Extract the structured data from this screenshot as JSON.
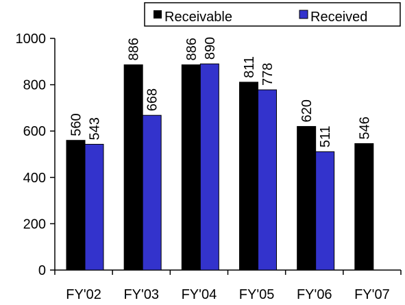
{
  "chart_data": {
    "type": "bar",
    "categories": [
      "FY'02",
      "FY'03",
      "FY'04",
      "FY'05",
      "FY'06",
      "FY'07"
    ],
    "series": [
      {
        "name": "Receivable",
        "values": [
          560,
          886,
          886,
          811,
          620,
          546
        ],
        "color": "#000000"
      },
      {
        "name": "Received",
        "values": [
          543,
          668,
          890,
          778,
          511,
          null
        ],
        "color": "#3333CC"
      }
    ],
    "ylim": [
      0,
      1000
    ],
    "yticks": [
      0,
      200,
      400,
      600,
      800,
      1000
    ],
    "grid": false,
    "legend_position": "top-right",
    "data_labels": true,
    "title": "",
    "xlabel": "",
    "ylabel": ""
  }
}
